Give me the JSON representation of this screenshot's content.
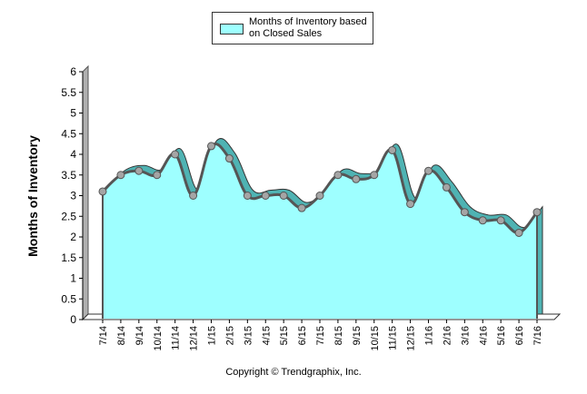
{
  "chart_data": {
    "type": "area",
    "title": "",
    "xlabel": "",
    "ylabel": "Months of Inventory",
    "ylim": [
      0,
      6
    ],
    "yticks": [
      0,
      0.5,
      1,
      1.5,
      2,
      2.5,
      3,
      3.5,
      4,
      4.5,
      5,
      5.5,
      6
    ],
    "ytick_labels": [
      "0",
      "0.5",
      "1",
      "1.5",
      "2",
      "2.5",
      "3",
      "3.5",
      "4",
      "4.5",
      "5",
      "5.5",
      "6"
    ],
    "categories": [
      "7/14",
      "8/14",
      "9/14",
      "10/14",
      "11/14",
      "12/14",
      "1/15",
      "2/15",
      "3/15",
      "4/15",
      "5/15",
      "6/15",
      "7/15",
      "8/15",
      "9/15",
      "10/15",
      "11/15",
      "12/15",
      "1/16",
      "2/16",
      "3/16",
      "4/16",
      "5/16",
      "6/16",
      "7/16"
    ],
    "series": [
      {
        "name": "Months of Inventory based on Closed Sales",
        "values": [
          3.1,
          3.5,
          3.6,
          3.5,
          4.0,
          3.0,
          4.2,
          3.9,
          3.0,
          3.0,
          3.0,
          2.7,
          3.0,
          3.5,
          3.4,
          3.5,
          4.1,
          2.8,
          3.6,
          3.2,
          2.6,
          2.4,
          2.4,
          2.1,
          2.6
        ]
      }
    ],
    "legend_position": "top-center",
    "grid": false
  },
  "legend": {
    "label": "Months of Inventory based on Closed Sales"
  },
  "footer": {
    "copyright": "Copyright © Trendgraphix, Inc."
  },
  "colors": {
    "area_fill": "#9EFFFF",
    "area_shadow": "#4FB3B3",
    "line": "#555555",
    "marker": "#A5A5A5",
    "axis_wall": "#B0B0B0",
    "axis": "#000000"
  }
}
